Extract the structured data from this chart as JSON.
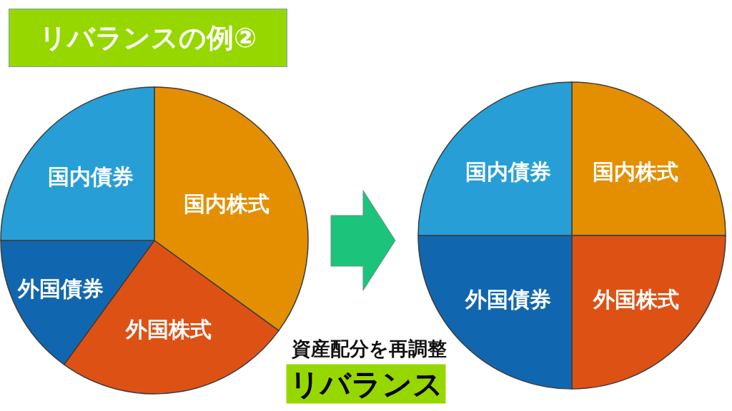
{
  "chart_data": [
    {
      "type": "pie",
      "title": "リバランスの例②",
      "categories": [
        "国内株式",
        "外国株式",
        "外国債券",
        "国内債券"
      ],
      "values": [
        35,
        25,
        15,
        25
      ],
      "colors": [
        "#e48f02",
        "#de5114",
        "#1167af",
        "#279fd6"
      ],
      "annotations": [
        "資産配分を再調整",
        "リバランス"
      ]
    },
    {
      "type": "pie",
      "categories": [
        "国内株式",
        "外国株式",
        "外国債券",
        "国内債券"
      ],
      "values": [
        25,
        25,
        25,
        25
      ],
      "colors": [
        "#e48f02",
        "#de5114",
        "#1167af",
        "#279fd6"
      ]
    }
  ]
}
